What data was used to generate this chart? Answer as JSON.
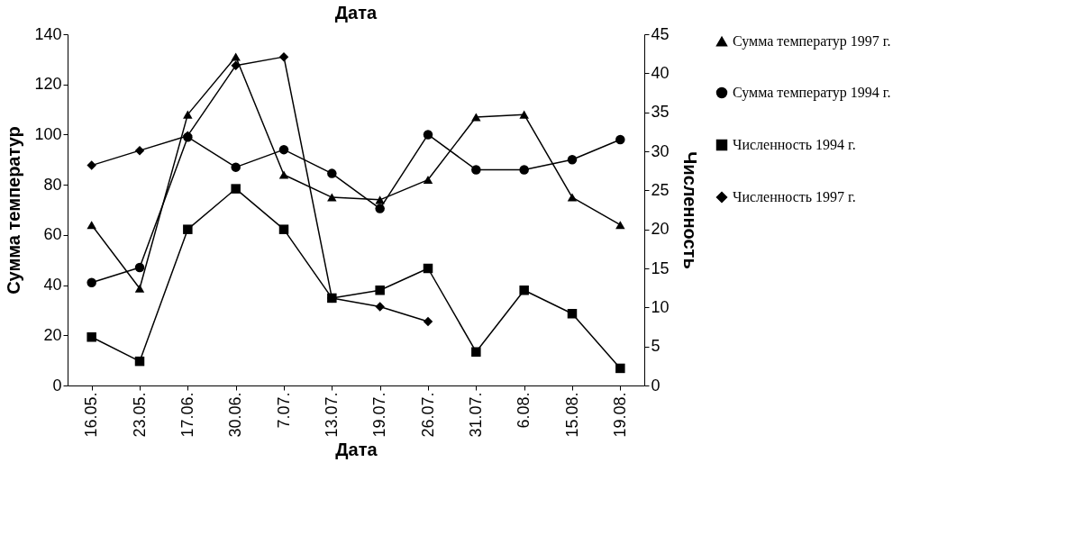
{
  "chart_data": {
    "type": "line",
    "title": "Дата",
    "xlabel": "Дата",
    "ylabel": "Сумма температур",
    "y2label": "Численность",
    "categories": [
      "16.05.",
      "23.05.",
      "17.06.",
      "30.06.",
      "7.07.",
      "13.07.",
      "19.07.",
      "26.07.",
      "31.07.",
      "6.08.",
      "15.08.",
      "19.08."
    ],
    "series": [
      {
        "name": "Сумма температур 1997 г.",
        "color": "#000000",
        "marker": "triangle",
        "values": [
          64,
          38.7,
          108,
          131,
          84,
          75,
          74,
          82,
          107,
          108,
          75,
          64
        ]
      },
      {
        "name": "Сумма температур 1994 г.",
        "color": "#000000",
        "marker": "circle",
        "values": [
          41,
          47,
          99,
          87,
          94,
          84.5,
          70.5,
          100,
          86,
          86,
          90,
          98
        ]
      },
      {
        "name": "Численность 1994 г.",
        "color": "#000000",
        "marker": "square",
        "axis": "y2",
        "values": [
          6.2,
          3.1,
          20,
          25.2,
          20,
          11.2,
          12.2,
          15,
          4.3,
          12.2,
          9.2,
          2.2
        ]
      },
      {
        "name": "Численность 1997 г.",
        "color": "#000000",
        "marker": "diamond",
        "axis": "y2",
        "values": [
          28.2,
          30.1,
          32,
          41,
          42.1,
          11.2,
          10.1,
          8.2,
          null,
          null,
          null,
          null
        ]
      }
    ],
    "ylim": [
      0,
      140
    ],
    "yticks": [
      0,
      20,
      40,
      60,
      80,
      100,
      120,
      140
    ],
    "y2lim": [
      0,
      45
    ],
    "y2ticks": [
      0,
      5,
      10,
      15,
      20,
      25,
      30,
      35,
      40,
      45
    ],
    "grid": false,
    "legend": "right",
    "line_style": "solid"
  }
}
